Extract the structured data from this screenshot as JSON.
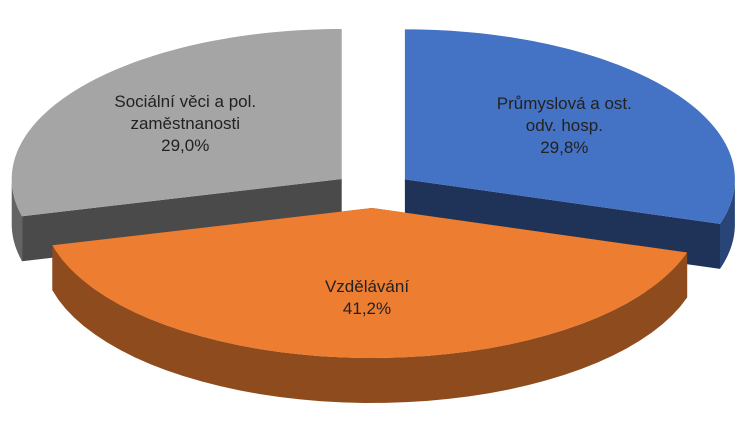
{
  "chart_data": {
    "type": "pie",
    "categories": [
      "Průmyslová a ost. odv. hosp.",
      "Vzdělávání",
      "Sociální věci a pol. zaměstnanosti"
    ],
    "values": [
      29.8,
      41.2,
      29.0
    ],
    "value_labels": [
      "29,8%",
      "41,2%",
      "29,0%"
    ],
    "colors": [
      "#4472c4",
      "#ed7d31",
      "#a5a5a5"
    ]
  }
}
